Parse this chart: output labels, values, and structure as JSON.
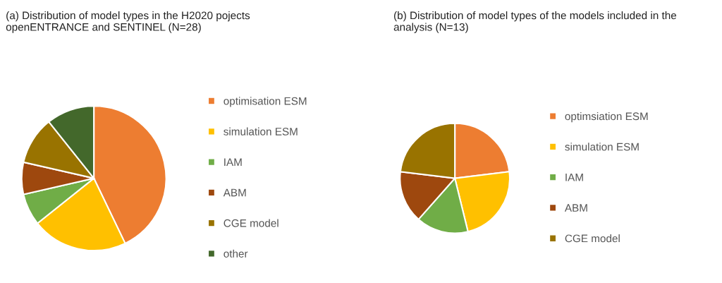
{
  "chart_data": [
    {
      "type": "pie",
      "title": "(a) Distribution of model types in the H2020 pojects openENTRANCE and SENTINEL (N=28)",
      "categories": [
        "optimisation ESM",
        "simulation ESM",
        "IAM",
        "ABM",
        "CGE model",
        "other"
      ],
      "values": [
        42.86,
        21.43,
        7.14,
        7.14,
        10.72,
        10.71
      ],
      "colors": [
        "#ed7d31",
        "#ffc000",
        "#70ad47",
        "#9e480e",
        "#997300",
        "#43682b"
      ],
      "legend": "right"
    },
    {
      "type": "pie",
      "title": "(b) Distribution of model types of the models included in the analysis (N=13)",
      "categories": [
        "optimsiation ESM",
        "simulation ESM",
        "IAM",
        "ABM",
        "CGE model"
      ],
      "values": [
        23.08,
        23.08,
        15.38,
        15.38,
        23.08
      ],
      "colors": [
        "#ed7d31",
        "#ffc000",
        "#70ad47",
        "#9e480e",
        "#997300"
      ],
      "legend": "right"
    }
  ]
}
